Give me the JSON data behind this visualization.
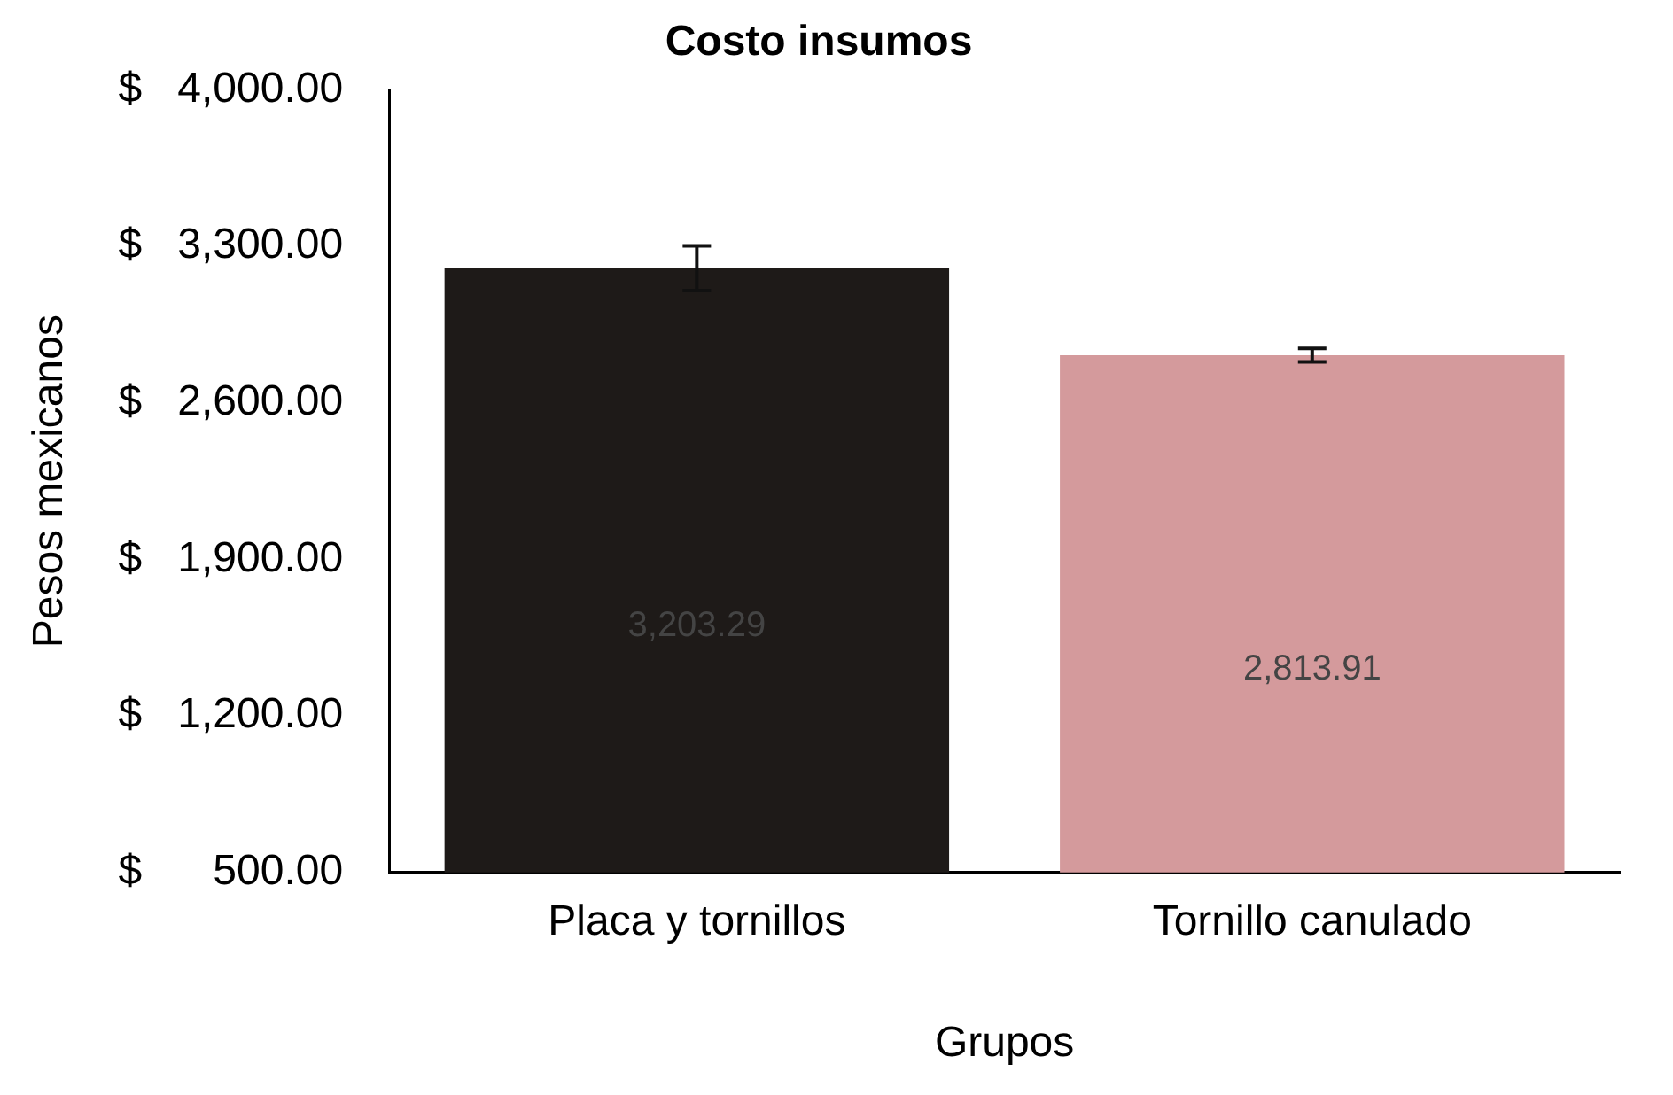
{
  "chart_data": {
    "type": "bar",
    "title": "Costo insumos",
    "xlabel": "Grupos",
    "ylabel": "Pesos mexicanos",
    "categories": [
      "Placa y tornillos",
      "Tornillo canulado"
    ],
    "values": [
      3203.29,
      2813.91
    ],
    "errors": [
      100,
      30
    ],
    "colors": [
      "#1e1a18",
      "#d49a9c"
    ],
    "value_labels": [
      "3,203.29",
      "2,813.91"
    ],
    "ylim": [
      500,
      4000
    ],
    "yticks": [
      {
        "value": 500,
        "label": "$      500.00"
      },
      {
        "value": 1200,
        "label": "$   1,200.00"
      },
      {
        "value": 1900,
        "label": "$   1,900.00"
      },
      {
        "value": 2600,
        "label": "$   2,600.00"
      },
      {
        "value": 3300,
        "label": "$   3,300.00"
      },
      {
        "value": 4000,
        "label": "$   4,000.00"
      }
    ],
    "grid": false,
    "legend": false
  }
}
